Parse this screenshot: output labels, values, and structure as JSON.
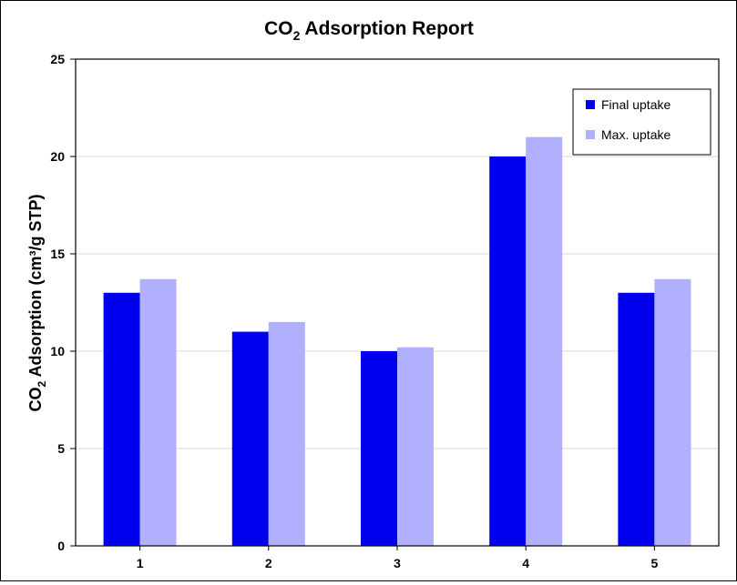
{
  "chart_data": {
    "type": "bar",
    "title": {
      "prefix": "CO",
      "subscript": "2",
      "suffix": " Adsorption Report"
    },
    "ylabel": {
      "prefix": "CO",
      "subscript": "2",
      "suffix": " Adsorption (cm³/g STP)"
    },
    "xlabel": "",
    "categories": [
      "1",
      "2",
      "3",
      "4",
      "5"
    ],
    "series": [
      {
        "name": "Final uptake",
        "values": [
          13.0,
          11.0,
          10.0,
          20.0,
          13.0
        ],
        "color": "#0000ee"
      },
      {
        "name": "Max. uptake",
        "values": [
          13.7,
          11.5,
          10.2,
          21.0,
          13.7
        ],
        "color": "#b0b0ff"
      }
    ],
    "ylim": [
      0,
      25
    ],
    "yticks": [
      "0",
      "5",
      "10",
      "15",
      "20",
      "25"
    ],
    "grid": true,
    "legend": "top-right"
  }
}
